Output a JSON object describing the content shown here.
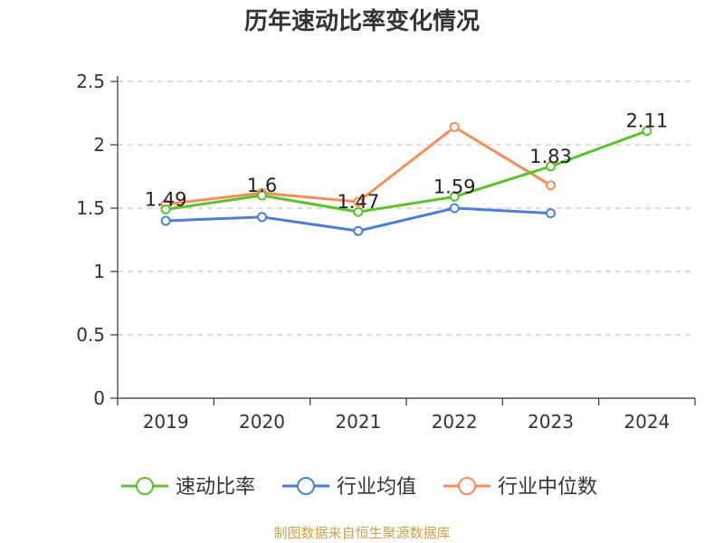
{
  "chart_data": {
    "type": "line",
    "title": "历年速动比率变化情况",
    "categories": [
      "2019",
      "2020",
      "2021",
      "2022",
      "2023",
      "2024"
    ],
    "ylim": [
      0,
      2.5
    ],
    "yticks": [
      "0",
      "0.5",
      "1",
      "1.5",
      "2",
      "2.5"
    ],
    "yticks_values": [
      0,
      0.5,
      1,
      1.5,
      2,
      2.5
    ],
    "grid": true,
    "legend_position": "bottom",
    "series": [
      {
        "name": "速动比率",
        "color": "#5cc12d",
        "values": [
          1.49,
          1.6,
          1.47,
          1.59,
          1.83,
          2.11
        ],
        "labels": [
          "1.49",
          "1.6",
          "1.47",
          "1.59",
          "1.83",
          "2.11"
        ]
      },
      {
        "name": "行业均值",
        "color": "#4a7fd6",
        "values": [
          1.4,
          1.43,
          1.32,
          1.5,
          1.46,
          null
        ]
      },
      {
        "name": "行业中位数",
        "color": "#f58d5a",
        "values": [
          1.53,
          1.62,
          1.55,
          2.14,
          1.68,
          null
        ]
      }
    ],
    "source": "制图数据来自恒生聚源数据库"
  }
}
